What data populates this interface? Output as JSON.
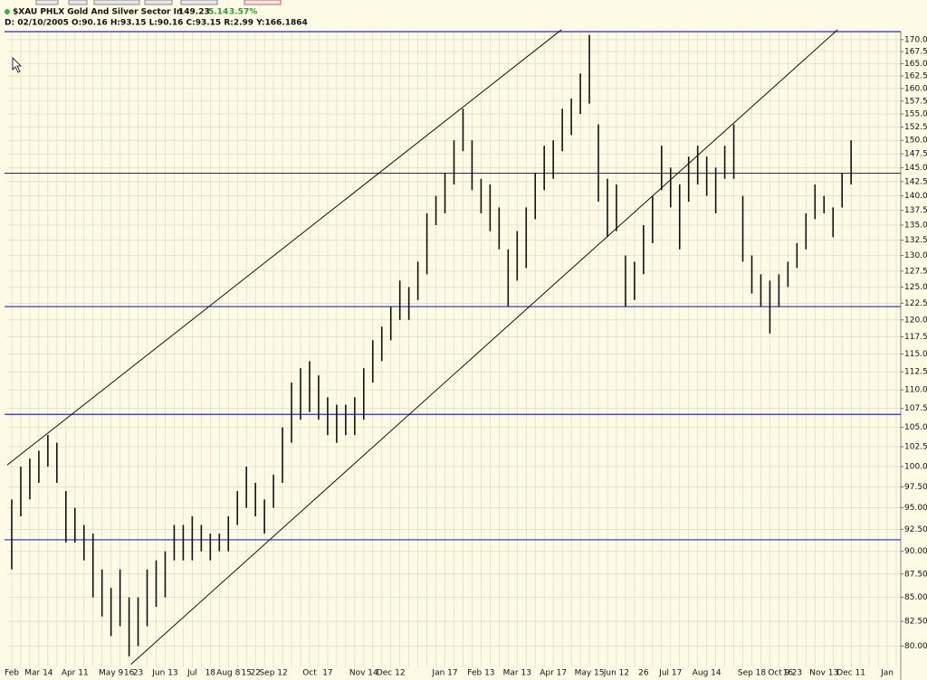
{
  "header": {
    "symbol": "$XAU PHLX Gold And Silver Sector In",
    "last": "149.23",
    "change": "5.14",
    "change_pct": "3.57%",
    "details": "D: 02/10/2005 O:90.16 H:93.15 L:90.16 C:93.15 R:2.99 Y:166.1864"
  },
  "chart_data": {
    "type": "ohlc",
    "log_scale": true,
    "grid": true,
    "color": "#111111",
    "level_color": "#2b2bb0",
    "categories": [
      "Feb",
      null,
      null,
      "Mar 14",
      null,
      null,
      null,
      "Apr 11",
      null,
      null,
      null,
      "May 9",
      null,
      "16",
      "23",
      null,
      null,
      "Jun 13",
      null,
      null,
      "Jul",
      null,
      "18",
      null,
      "Aug 8",
      null,
      "15",
      "22",
      null,
      "Sep 12",
      null,
      null,
      null,
      "Oct",
      null,
      "17",
      null,
      null,
      null,
      "Nov 14",
      null,
      null,
      "Dec 12",
      null,
      null,
      null,
      null,
      null,
      "Jan 17",
      null,
      null,
      null,
      "Feb 13",
      null,
      null,
      null,
      "Mar 13",
      null,
      null,
      null,
      "Apr 17",
      null,
      null,
      null,
      "May 15",
      null,
      null,
      "Jun 12",
      null,
      null,
      "26",
      null,
      null,
      "Jul 17",
      null,
      null,
      null,
      "Aug 14",
      null,
      null,
      null,
      null,
      "Sep 18",
      null,
      null,
      "Oct 9",
      "16",
      "23",
      null,
      null,
      "Nov 13",
      null,
      null,
      "Dec 11",
      null,
      null,
      null,
      "Jan",
      null
    ],
    "high": [
      96,
      100,
      101,
      102,
      104,
      103,
      97,
      95,
      93,
      92,
      88,
      86,
      88,
      85,
      85,
      88,
      89,
      90,
      93,
      93,
      94,
      93,
      92,
      92,
      94,
      97,
      100,
      98,
      96,
      99,
      105,
      111,
      113,
      114,
      112,
      109,
      108,
      108,
      109,
      113,
      117,
      119,
      122,
      126,
      125,
      129,
      137,
      140,
      144,
      150,
      156,
      150,
      143,
      142,
      138,
      131,
      134,
      138,
      144,
      149,
      150,
      156,
      158,
      163,
      171,
      153,
      143,
      142,
      130,
      129,
      135,
      140,
      149,
      145,
      142,
      147,
      149,
      147,
      145,
      149,
      153,
      140,
      130,
      127,
      126,
      127,
      129,
      132,
      137,
      142,
      140,
      138,
      144,
      150,
      null,
      null,
      null,
      null,
      null
    ],
    "low": [
      88,
      94,
      96,
      98,
      100,
      98,
      91,
      91,
      89,
      85,
      83,
      81,
      82,
      79,
      80,
      82,
      84,
      85,
      89,
      89,
      89,
      90,
      89,
      90,
      90,
      93,
      95,
      94,
      92,
      95,
      98,
      103,
      106,
      107,
      106,
      104,
      103,
      104,
      104,
      106,
      111,
      114,
      117,
      120,
      120,
      123,
      127,
      135,
      137,
      142,
      148,
      141,
      137,
      134,
      131,
      122,
      126,
      128,
      136,
      141,
      143,
      148,
      151,
      155,
      157,
      139,
      133,
      134,
      122,
      123,
      127,
      132,
      141,
      138,
      131,
      139,
      142,
      140,
      137,
      143,
      143,
      129,
      124,
      122,
      118,
      122,
      125,
      128,
      131,
      136,
      137,
      133,
      138,
      142,
      null,
      null,
      null,
      null,
      null
    ],
    "levels": [
      171.7,
      144,
      122,
      106.7,
      91.3
    ],
    "trendlines": [
      {
        "x": [
          -0.5,
          60.9
        ],
        "y": [
          100.2,
          172.1
        ]
      },
      {
        "x": [
          13.2,
          91.5
        ],
        "y": [
          78.2,
          172.1
        ]
      }
    ],
    "ylim": [
      76.7,
      171.7
    ],
    "yticks": [
      {
        "value": 80,
        "label": "80.00"
      },
      {
        "value": 82.5,
        "label": "82.50"
      },
      {
        "value": 85,
        "label": "85.00"
      },
      {
        "value": 87.5,
        "label": "87.50"
      },
      {
        "value": 90,
        "label": "90.00"
      },
      {
        "value": 92.5,
        "label": "92.50"
      },
      {
        "value": 95,
        "label": "95.00"
      },
      {
        "value": 97.5,
        "label": "97.50"
      },
      {
        "value": 100,
        "label": "100.00"
      },
      {
        "value": 102.5,
        "label": "102.50"
      },
      {
        "value": 105,
        "label": "105.00"
      },
      {
        "value": 107.5,
        "label": "107.50"
      },
      {
        "value": 110,
        "label": "110.00"
      },
      {
        "value": 112.5,
        "label": "112.50"
      },
      {
        "value": 115,
        "label": "115.00"
      },
      {
        "value": 117.5,
        "label": "117.50"
      },
      {
        "value": 120,
        "label": "120.00"
      },
      {
        "value": 122.5,
        "label": "122.50"
      },
      {
        "value": 125,
        "label": "125.00"
      },
      {
        "value": 127.5,
        "label": "127.50"
      },
      {
        "value": 130,
        "label": "130.00"
      },
      {
        "value": 132.5,
        "label": "132.50"
      },
      {
        "value": 135,
        "label": "135.00"
      },
      {
        "value": 137.5,
        "label": "137.50"
      },
      {
        "value": 140,
        "label": "140.00"
      },
      {
        "value": 142.5,
        "label": "142.50"
      },
      {
        "value": 145,
        "label": "145.00"
      },
      {
        "value": 147.5,
        "label": "147.50"
      },
      {
        "value": 150,
        "label": "150.00"
      },
      {
        "value": 152.5,
        "label": "152.50"
      },
      {
        "value": 155,
        "label": "155.00"
      },
      {
        "value": 157.5,
        "label": "157.50"
      },
      {
        "value": 160,
        "label": "160.00"
      },
      {
        "value": 162.5,
        "label": "162.50"
      },
      {
        "value": 165,
        "label": "165.00"
      },
      {
        "value": 167.5,
        "label": "167.50"
      },
      {
        "value": 170,
        "label": "170.00"
      }
    ]
  }
}
